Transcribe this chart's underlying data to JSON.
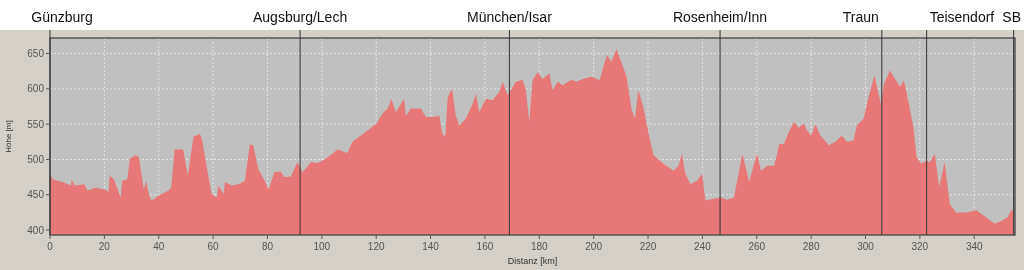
{
  "chart_data": {
    "type": "area",
    "xlabel": "Distanz [km]",
    "ylabel": "Höhe [m]",
    "xlim": [
      0,
      355
    ],
    "ylim": [
      393,
      672
    ],
    "xticks": [
      0,
      20,
      40,
      60,
      80,
      100,
      120,
      140,
      160,
      180,
      200,
      220,
      240,
      260,
      280,
      300,
      320,
      340
    ],
    "yticks": [
      400,
      450,
      500,
      550,
      600,
      650
    ],
    "grid": true,
    "ref_lines": [
      {
        "axis": "x",
        "value": 0,
        "label": "Günzburg"
      },
      {
        "axis": "x",
        "value": 92,
        "label": "Augsburg/Lech"
      },
      {
        "axis": "x",
        "value": 169,
        "label": "München/Isar"
      },
      {
        "axis": "x",
        "value": 246.5,
        "label": "Rosenheim/Inn"
      },
      {
        "axis": "x",
        "value": 306,
        "label": "Traun"
      },
      {
        "axis": "x",
        "value": 322.5,
        "label": "Teisendorf"
      },
      {
        "axis": "x",
        "value": 354.5,
        "label": "SB"
      }
    ],
    "series": [
      {
        "color": "#e87878",
        "x": [
          0,
          1,
          4.6,
          7.7,
          8,
          9,
          12.6,
          13.8,
          16.8,
          20.5,
          21.5,
          22,
          23.5,
          26,
          26.6,
          28.4,
          29.4,
          31.5,
          32.7,
          34.5,
          35.5,
          36,
          37,
          38,
          40,
          43.7,
          44.6,
          45.9,
          46.7,
          49,
          50.7,
          52.8,
          55.2,
          56,
          58.3,
          59.5,
          61.3,
          62,
          63.8,
          64.4,
          66.8,
          69.3,
          71.7,
          73.5,
          74.8,
          76.6,
          79,
          80.4,
          82.5,
          84.9,
          86.1,
          88.6,
          91,
          92.9,
          96,
          98.4,
          101.5,
          105.8,
          109.4,
          111.3,
          113.7,
          116.8,
          120.1,
          122.3,
          124.2,
          125.6,
          127.2,
          130.3,
          130.9,
          132.8,
          134.6,
          136.4,
          138.3,
          140.7,
          143.2,
          144.4,
          145.4,
          146.3,
          147.9,
          149.3,
          150.6,
          153,
          155.5,
          156.7,
          157.9,
          160.4,
          162.8,
          165.3,
          166.5,
          168.3,
          171.4,
          173.9,
          175.1,
          176.3,
          177.5,
          179.4,
          181.2,
          183.7,
          184.9,
          186.8,
          188.6,
          191.7,
          193.6,
          196,
          199.1,
          202.2,
          203.7,
          204.9,
          206.5,
          208.4,
          210.2,
          212.1,
          214,
          215.2,
          216.4,
          218.3,
          220.1,
          222,
          225.7,
          229.4,
          231.2,
          232.5,
          233.7,
          235.6,
          238,
          239.9,
          241.1,
          243.6,
          246.7,
          249.1,
          251.6,
          253.5,
          254.7,
          257.2,
          259,
          260.2,
          261.5,
          263.9,
          266.4,
          268.3,
          270,
          271.8,
          273.7,
          275.5,
          277.3,
          278.5,
          280,
          281.6,
          283.4,
          286.5,
          288.9,
          291.3,
          293.2,
          295.6,
          296.8,
          299.3,
          301.1,
          303.3,
          304.8,
          305.7,
          306.8,
          309,
          310.9,
          312.7,
          314.1,
          315.7,
          317.6,
          318.8,
          320.6,
          322.4,
          323.7,
          325.5,
          327.1,
          329.1,
          331,
          333.4,
          337.1,
          340.7,
          344.4,
          347.4,
          349.9,
          352.3,
          353.9,
          354.4
        ],
        "values": [
          479,
          472,
          468,
          463,
          472,
          463,
          465,
          456,
          460,
          457,
          454,
          477,
          472,
          446,
          470,
          472,
          501,
          506,
          503,
          458,
          470,
          456,
          443,
          443,
          449,
          456,
          461,
          515,
          514,
          514,
          477,
          532,
          536,
          527,
          475,
          451,
          446,
          463,
          451,
          468,
          463,
          465,
          470,
          521,
          520,
          487,
          470,
          457,
          482,
          483,
          475,
          476,
          496,
          482,
          496,
          495,
          501,
          514,
          509,
          525,
          532,
          541,
          551,
          565,
          572,
          586,
          567,
          586,
          562,
          572,
          572,
          572,
          560,
          560,
          562,
          536,
          532,
          588,
          600,
          562,
          548,
          558,
          579,
          593,
          567,
          586,
          584,
          596,
          610,
          591,
          610,
          613,
          598,
          553,
          612,
          624,
          614,
          622,
          598,
          610,
          605,
          613,
          610,
          614,
          617,
          612,
          633,
          648,
          638,
          656,
          638,
          617,
          570,
          558,
          598,
          574,
          539,
          506,
          494,
          484,
          491,
          508,
          480,
          465,
          470,
          480,
          442,
          444,
          446,
          443,
          446,
          484,
          508,
          468,
          494,
          508,
          484,
          491,
          491,
          522,
          522,
          539,
          553,
          545,
          551,
          541,
          534,
          550,
          534,
          520,
          525,
          534,
          525,
          527,
          548,
          558,
          588,
          619,
          593,
          577,
          607,
          626,
          614,
          603,
          612,
          584,
          546,
          503,
          494,
          498,
          496,
          508,
          461,
          496,
          437,
          425,
          425,
          428,
          418,
          409,
          413,
          418,
          430,
          423
        ]
      }
    ]
  }
}
